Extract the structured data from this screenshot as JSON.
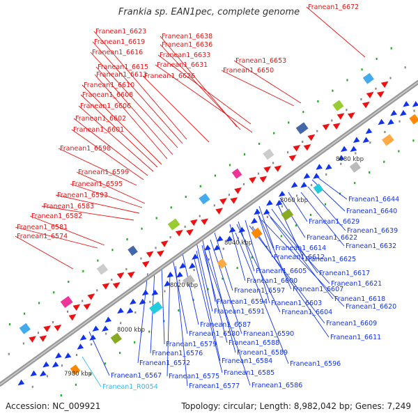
{
  "title": "Frankia sp. EAN1pec, complete genome",
  "footer": {
    "accession": "Accession: NC_009921",
    "summary": "Topology: circular; Length: 8,982,042 bp; Genes: 7,249"
  },
  "colors": {
    "forward": "#ee1111",
    "reverse": "#1133ee",
    "rna": "#33bbee",
    "axis": "#888888"
  },
  "kbp_ticks": [
    "7980 kbp",
    "8000 kbp",
    "8020 kbp",
    "8040 kbp",
    "8060 kbp",
    "8080 kbp"
  ],
  "forward_labels": [
    "Franean1_6672",
    "Franean1_6623",
    "Franean1_6638",
    "Franean1_6636",
    "Franean1_6619",
    "Franean1_6633",
    "Franean1_6616",
    "Franean1_6653",
    "Franean1_6631",
    "Franean1_6615",
    "Franean1_6650",
    "Franean1_6613",
    "Franean1_6626",
    "Franean1_6610",
    "Franean1_6608",
    "Franean1_6606",
    "Franean1_6602",
    "Franean1_6601",
    "Franean1_6598",
    "Franean1_6599",
    "Franean1_6595",
    "Franean1_6593",
    "Franean1_6583",
    "Franean1_6582",
    "Franean1_6581",
    "Franean1_6574"
  ],
  "reverse_labels": [
    "Franean1_6644",
    "Franean1_6640",
    "Franean1_6629",
    "Franean1_6639",
    "Franean1_6622",
    "Franean1_6632",
    "Franean1_6614",
    "Franean1_6625",
    "Franean1_6612",
    "Franean1_6605",
    "Franean1_6617",
    "Franean1_6600",
    "Franean1_6621",
    "Franean1_6597",
    "Franean1_6607",
    "Franean1_6618",
    "Franean1_6594",
    "Franean1_6603",
    "Franean1_6620",
    "Franean1_6591",
    "Franean1_6604",
    "Franean1_6587",
    "Franean1_6609",
    "Franean1_6580",
    "Franean1_6590",
    "Franean1_6611",
    "Franean1_6579",
    "Franean1_6588",
    "Franean1_6576",
    "Franean1_6589",
    "Franean1_6572",
    "Franean1_6584",
    "Franean1_6596",
    "Franean1_6567",
    "Franean1_6575",
    "Franean1_6585",
    "Franean1_6577",
    "Franean1_6586"
  ],
  "rna_labels": [
    "Franean1_R0054"
  ]
}
